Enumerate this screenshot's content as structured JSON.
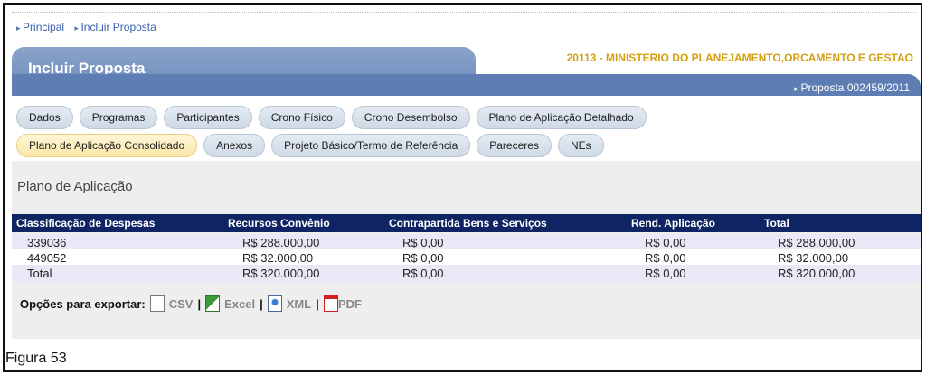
{
  "breadcrumb": [
    "Principal",
    "Incluir Proposta"
  ],
  "header": {
    "title": "Incluir Proposta",
    "org": "20113 - MINISTERIO DO PLANEJAMENTO,ORCAMENTO E GESTAO",
    "proposal": "Proposta 002459/2011"
  },
  "tabs_row1": [
    "Dados",
    "Programas",
    "Participantes",
    "Crono Físico",
    "Crono Desembolso",
    "Plano de Aplicação Detalhado"
  ],
  "tabs_row2": [
    "Plano de Aplicação Consolidado",
    "Anexos",
    "Projeto Básico/Termo de Referência",
    "Pareceres",
    "NEs"
  ],
  "active_tab": "Plano de Aplicação Consolidado",
  "section_title": "Plano de Aplicação",
  "table": {
    "headers": [
      "Classificação de Despesas",
      "Recursos Convênio",
      "Contrapartida Bens e Serviços",
      "Rend. Aplicação",
      "Total"
    ],
    "rows": [
      [
        "339036",
        "R$ 288.000,00",
        "R$ 0,00",
        "R$ 0,00",
        "R$ 288.000,00"
      ],
      [
        "449052",
        "R$ 32.000,00",
        "R$ 0,00",
        "R$ 0,00",
        "R$ 32.000,00"
      ],
      [
        "Total",
        "R$ 320.000,00",
        "R$ 0,00",
        "R$ 0,00",
        "R$ 320.000,00"
      ]
    ]
  },
  "export": {
    "label": "Opções para exportar:",
    "options": [
      "CSV",
      "Excel",
      "XML",
      "PDF"
    ],
    "separator": "|"
  },
  "caption": "Figura 53",
  "colors": {
    "header_band": "#5d7db3",
    "table_header": "#0f2463",
    "org_text": "#d4a010",
    "active_tab": "#fbe7a8"
  }
}
